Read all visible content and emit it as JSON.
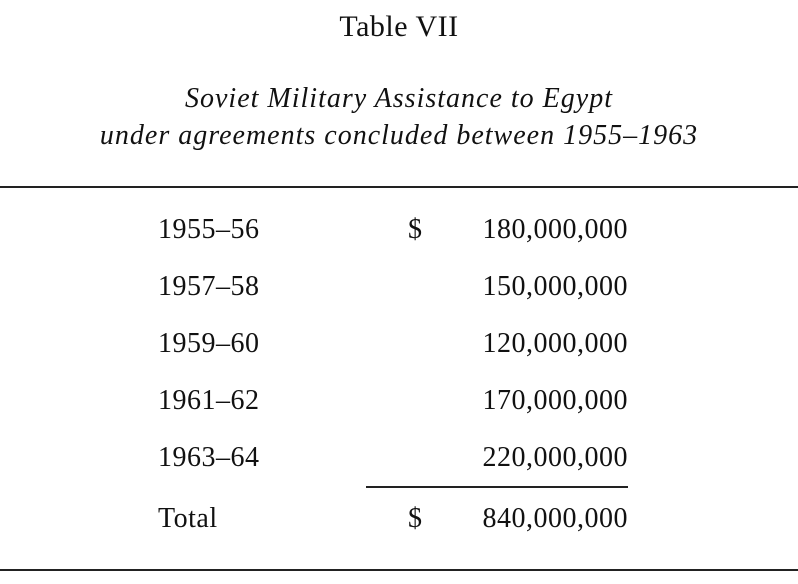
{
  "table": {
    "label": "Table VII",
    "caption_line1": "Soviet Military Assistance to Egypt",
    "caption_line2": "under agreements concluded between 1955–1963",
    "rows": [
      {
        "period": "1955–56",
        "currency": "$",
        "amount": "180,000,000"
      },
      {
        "period": "1957–58",
        "currency": "",
        "amount": "150,000,000"
      },
      {
        "period": "1959–60",
        "currency": "",
        "amount": "120,000,000"
      },
      {
        "period": "1961–62",
        "currency": "",
        "amount": "170,000,000"
      },
      {
        "period": "1963–64",
        "currency": "",
        "amount": "220,000,000"
      }
    ],
    "total": {
      "label": "Total",
      "currency": "$",
      "amount": "840,000,000"
    }
  }
}
